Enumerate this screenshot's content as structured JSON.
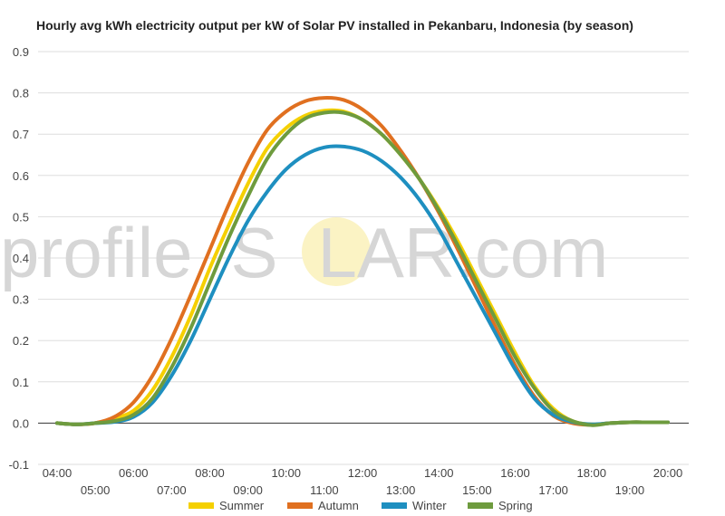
{
  "chart_data": {
    "type": "line",
    "title": "Hourly avg kWh electricity output per kW of Solar PV installed in Pekanbaru, Indonesia (by season)",
    "xlabel": "",
    "ylabel": "",
    "x": [
      "04:00",
      "04:30",
      "05:00",
      "05:30",
      "06:00",
      "06:30",
      "07:00",
      "07:30",
      "08:00",
      "08:30",
      "09:00",
      "09:30",
      "10:00",
      "10:30",
      "11:00",
      "11:30",
      "12:00",
      "12:30",
      "13:00",
      "13:30",
      "14:00",
      "14:30",
      "15:00",
      "15:30",
      "16:00",
      "16:30",
      "17:00",
      "17:30",
      "18:00",
      "18:30",
      "19:00",
      "19:30",
      "20:00"
    ],
    "x_tick_labels": [
      "04:00",
      "05:00",
      "06:00",
      "07:00",
      "08:00",
      "09:00",
      "10:00",
      "11:00",
      "12:00",
      "13:00",
      "14:00",
      "15:00",
      "16:00",
      "17:00",
      "18:00",
      "19:00",
      "20:00"
    ],
    "ylim": [
      -0.1,
      0.9
    ],
    "y_ticks": [
      "-0.1",
      "0.0",
      "0.1",
      "0.2",
      "0.3",
      "0.4",
      "0.5",
      "0.6",
      "0.7",
      "0.8",
      "0.9"
    ],
    "grid": true,
    "legend": "bottom",
    "series": [
      {
        "name": "Summer",
        "color": "#f5d000",
        "values": [
          0.0,
          -0.003,
          0.0,
          0.012,
          0.03,
          0.08,
          0.16,
          0.26,
          0.375,
          0.48,
          0.58,
          0.665,
          0.715,
          0.745,
          0.757,
          0.755,
          0.735,
          0.7,
          0.65,
          0.59,
          0.52,
          0.44,
          0.35,
          0.26,
          0.17,
          0.09,
          0.035,
          0.005,
          -0.003,
          0.0,
          0.002,
          0.002,
          0.002
        ]
      },
      {
        "name": "Autumn",
        "color": "#e07020",
        "values": [
          0.0,
          -0.003,
          0.0,
          0.015,
          0.05,
          0.115,
          0.205,
          0.31,
          0.42,
          0.53,
          0.63,
          0.71,
          0.755,
          0.78,
          0.788,
          0.783,
          0.76,
          0.72,
          0.66,
          0.59,
          0.51,
          0.42,
          0.325,
          0.23,
          0.14,
          0.065,
          0.018,
          0.0,
          -0.004,
          0.0,
          0.002,
          0.002,
          0.002
        ]
      },
      {
        "name": "Winter",
        "color": "#1e8fc0",
        "values": [
          0.0,
          -0.003,
          0.0,
          0.003,
          0.015,
          0.05,
          0.115,
          0.2,
          0.3,
          0.4,
          0.49,
          0.56,
          0.615,
          0.65,
          0.668,
          0.67,
          0.66,
          0.635,
          0.595,
          0.54,
          0.47,
          0.385,
          0.3,
          0.215,
          0.13,
          0.06,
          0.02,
          0.003,
          -0.003,
          0.0,
          0.002,
          0.002,
          0.002
        ]
      },
      {
        "name": "Spring",
        "color": "#6e9b3e",
        "values": [
          0.0,
          -0.003,
          0.0,
          0.005,
          0.02,
          0.06,
          0.135,
          0.23,
          0.34,
          0.45,
          0.55,
          0.64,
          0.7,
          0.738,
          0.752,
          0.752,
          0.735,
          0.7,
          0.65,
          0.59,
          0.515,
          0.43,
          0.34,
          0.25,
          0.16,
          0.085,
          0.03,
          0.005,
          -0.005,
          0.0,
          0.002,
          0.002,
          0.002
        ]
      }
    ]
  },
  "watermark": {
    "part1": "profile",
    "part2": "S",
    "part3": "LAR.com",
    "sun_color": "#fbf3c4",
    "text_color": "#d6d6d6"
  }
}
